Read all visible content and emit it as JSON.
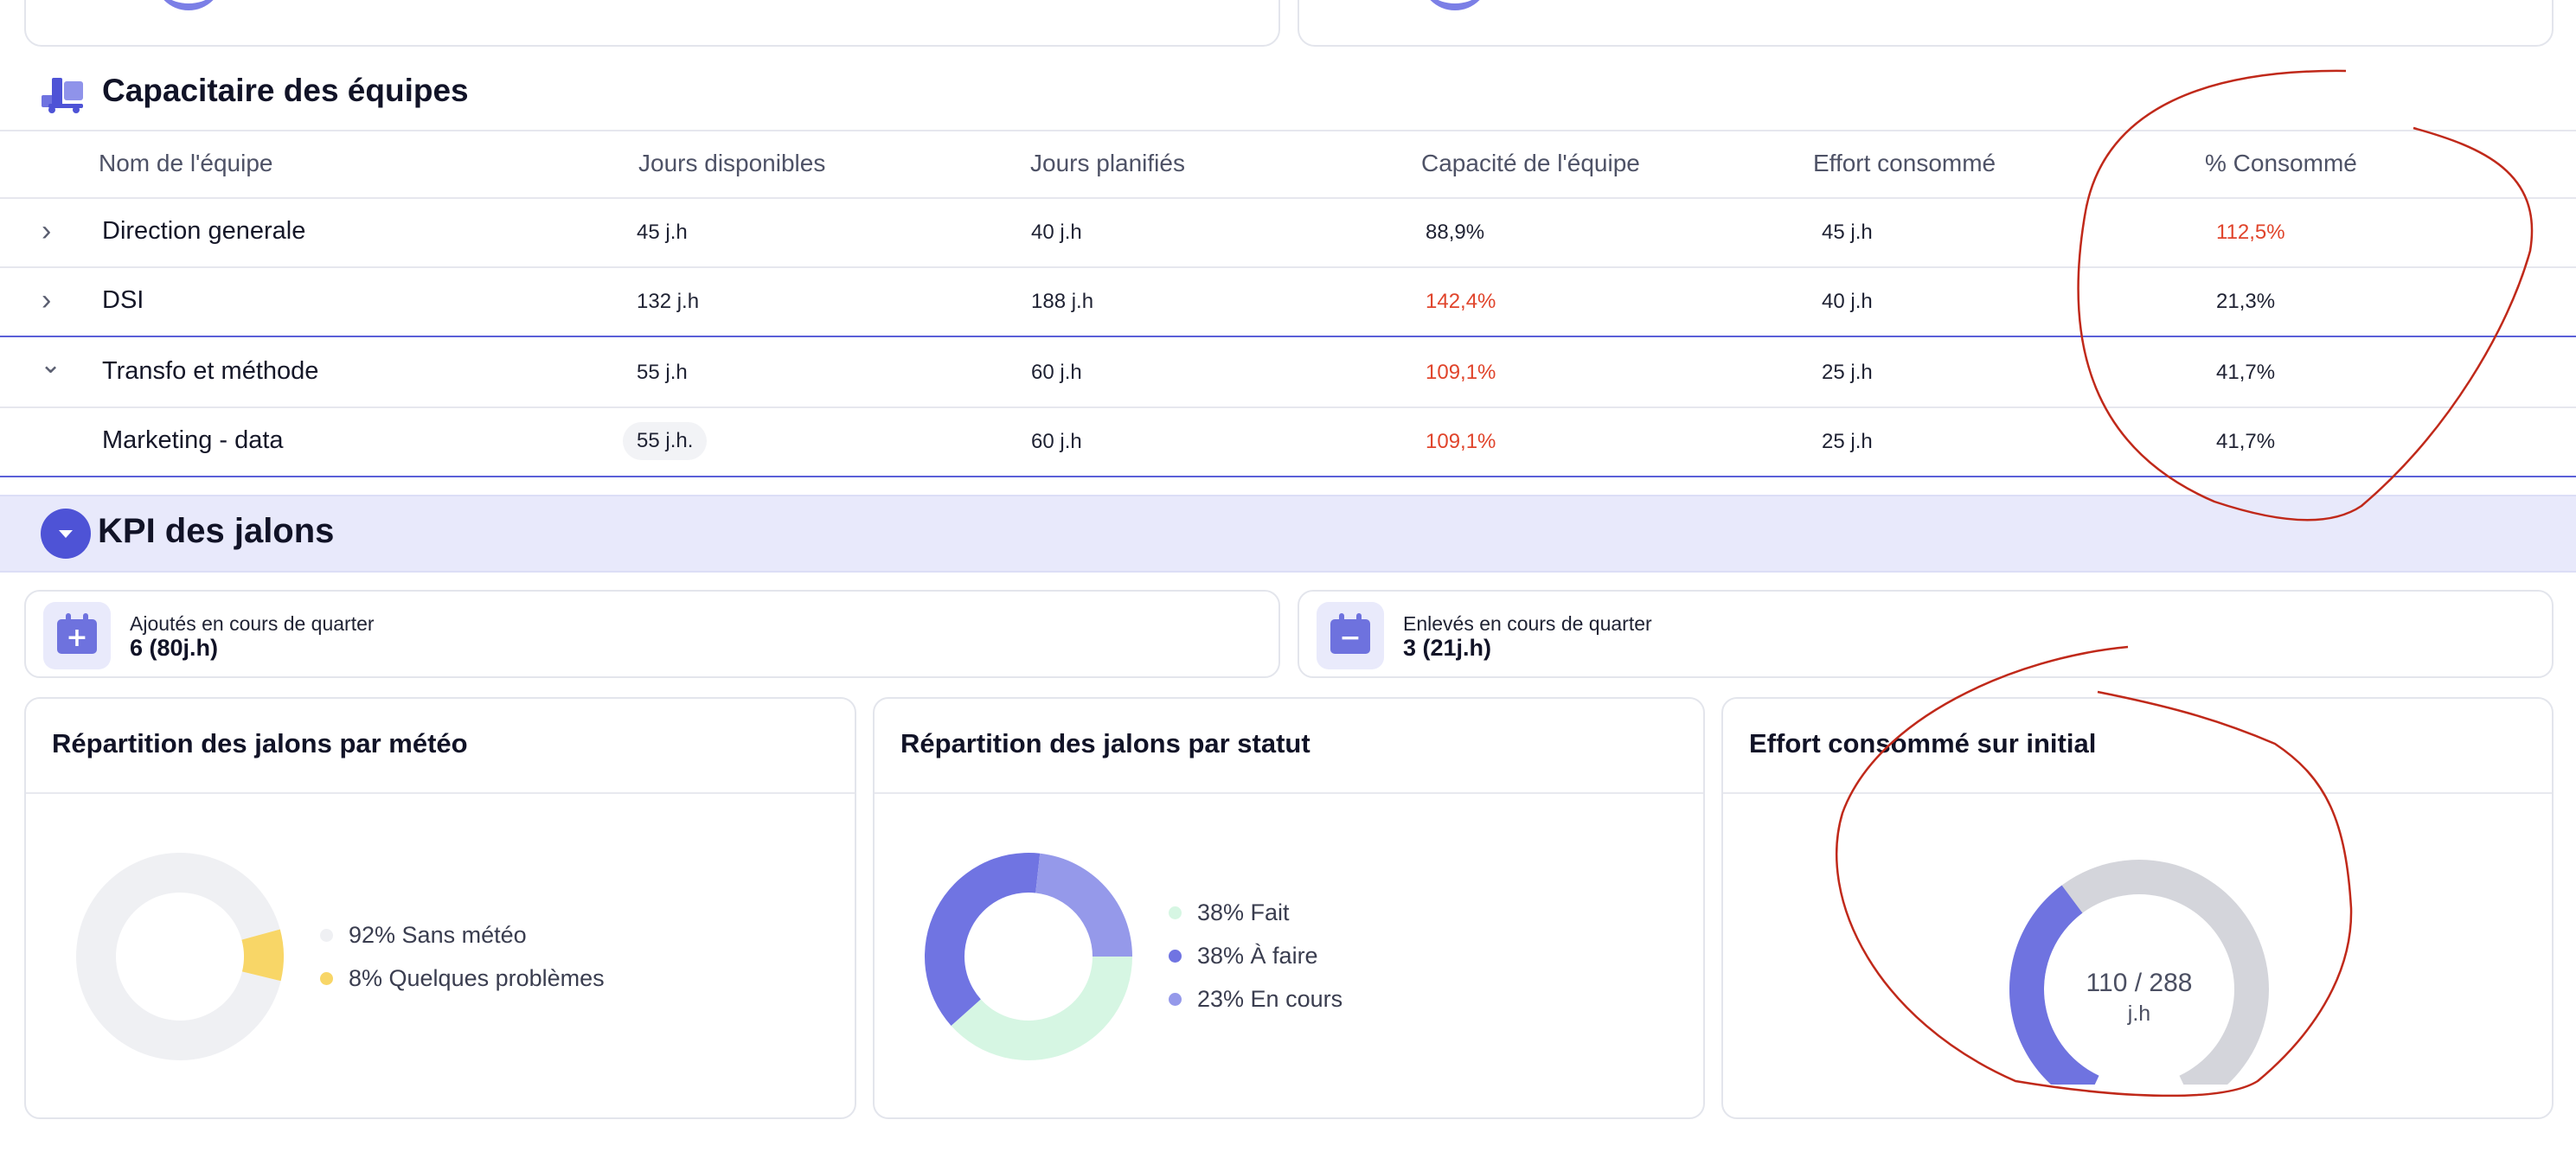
{
  "colors": {
    "accent": "#4e53d6",
    "accent_light": "#e8e9fb",
    "over_capacity_red": "#e0442b",
    "annotation_red": "#c0291a",
    "meteo_none": "#eff0f3",
    "meteo_problems": "#f8d667",
    "status_done": "#d6f6e3",
    "status_todo": "#7074e2",
    "status_progress": "#9599ea",
    "gauge_filled": "#6f73e0",
    "gauge_empty": "#d4d5db"
  },
  "capacitaire": {
    "title": "Capacitaire des équipes",
    "icon": "truck-icon",
    "columns": [
      "Nom de l'équipe",
      "Jours disponibles",
      "Jours planifiés",
      "Capacité de l'équipe",
      "Effort consommé",
      "% Consommé"
    ],
    "rows": [
      {
        "name": "Direction generale",
        "chevron": "›",
        "dispo": "45 j.h",
        "planifies": "40 j.h",
        "capacite": "88,9%",
        "effort": "45 j.h",
        "pct": "112,5%"
      },
      {
        "name": "DSI",
        "chevron": "›",
        "dispo": "132 j.h",
        "planifies": "188 j.h",
        "capacite": "142,4%",
        "effort": "40 j.h",
        "pct": "21,3%"
      },
      {
        "name": "Transfo et méthode",
        "chevron": "⌄",
        "dispo": "55 j.h",
        "planifies": "60 j.h",
        "capacite": "109,1%",
        "effort": "25 j.h",
        "pct": "41,7%"
      },
      {
        "name": "Marketing - data",
        "chevron": "",
        "dispo": "55 j.h.",
        "planifies": "60 j.h",
        "capacite": "109,1%",
        "effort": "25 j.h",
        "pct": "41,7%"
      }
    ]
  },
  "kpi": {
    "title": "KPI des jalons",
    "added": {
      "label": "Ajoutés en cours de quarter",
      "value": "6 (80j.h)",
      "icon": "calendar-plus-icon"
    },
    "removed": {
      "label": "Enlevés en cours de quarter",
      "value": "3 (21j.h)",
      "icon": "calendar-minus-icon"
    }
  },
  "charts": {
    "meteo": {
      "title": "Répartition des jalons par météo",
      "legend": [
        "92% Sans météo",
        "8% Quelques problèmes"
      ]
    },
    "statut": {
      "title": "Répartition des jalons par statut",
      "legend": [
        "38% Fait",
        "38% À faire",
        "23% En cours"
      ]
    },
    "effort": {
      "title": "Effort consommé sur initial",
      "value_text": "110 / 288",
      "unit": "j.h"
    }
  },
  "chart_data": [
    {
      "type": "pie",
      "title": "Répartition des jalons par météo",
      "labels": [
        "Sans météo",
        "Quelques problèmes"
      ],
      "values": [
        92,
        8
      ]
    },
    {
      "type": "pie",
      "title": "Répartition des jalons par statut",
      "labels": [
        "Fait",
        "À faire",
        "En cours"
      ],
      "values": [
        38,
        38,
        23
      ]
    },
    {
      "type": "gauge",
      "title": "Effort consommé sur initial",
      "value": 110,
      "max": 288,
      "unit": "j.h"
    }
  ]
}
